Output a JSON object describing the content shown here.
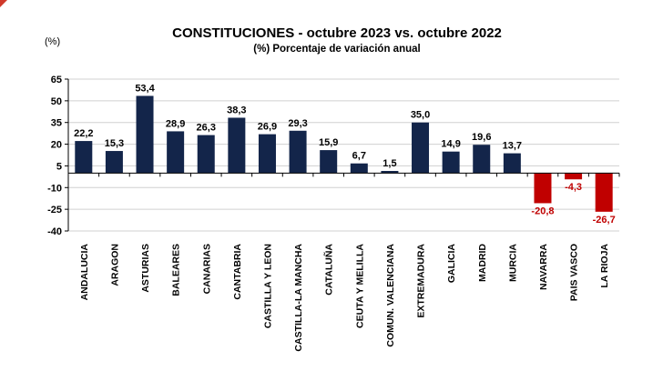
{
  "chart_data": {
    "type": "bar",
    "title": "CONSTITUCIONES  - octubre 2023 vs. octubre 2022",
    "subtitle": "(%) Porcentaje de variación anual",
    "ylabel": "(%)",
    "xlabel": "",
    "ylim": [
      -40,
      65
    ],
    "yticks": [
      65,
      50,
      35,
      20,
      5,
      -10,
      -25,
      -40
    ],
    "grid": true,
    "categories": [
      "ANDALUCIA",
      "ARAGON",
      "ASTURIAS",
      "BALEARES",
      "CANARIAS",
      "CANTABRIA",
      "CASTILLA Y LEON",
      "CASTILLA-LA MANCHA",
      "CATALUÑA",
      "CEUTA Y MELILLA",
      "COMUN. VALENCIANA",
      "EXTREMADURA",
      "GALICIA",
      "MADRID",
      "MURCIA",
      "NAVARRA",
      "PAIS VASCO",
      "LA RIOJA"
    ],
    "values": [
      22.2,
      15.3,
      53.4,
      28.9,
      26.3,
      38.3,
      26.9,
      29.3,
      15.9,
      6.7,
      1.5,
      35.0,
      14.9,
      19.6,
      13.7,
      -20.8,
      -4.3,
      -26.7
    ],
    "value_labels": [
      "22,2",
      "15,3",
      "53,4",
      "28,9",
      "26,3",
      "38,3",
      "26,9",
      "29,3",
      "15,9",
      "6,7",
      "1,5",
      "35,0",
      "14,9",
      "19,6",
      "13,7",
      "-20,8",
      "-4,3",
      "-26,7"
    ],
    "colors": {
      "positive": "#13254a",
      "negative": "#c00000",
      "negative_label": "#c00000",
      "grid": "#d0d0d0",
      "axis": "#000000"
    }
  }
}
